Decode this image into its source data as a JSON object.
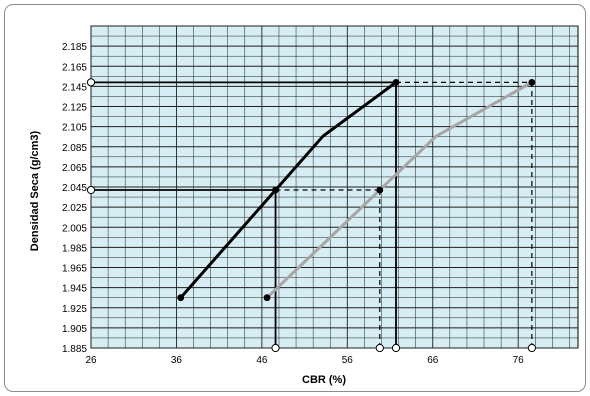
{
  "chart_data": {
    "type": "line",
    "title": "",
    "xlabel": "CBR (%)",
    "ylabel": "Densidad Seca (g/cm3)",
    "xlim": [
      26,
      83
    ],
    "ylim": [
      1.885,
      2.205
    ],
    "x_ticks": [
      "26",
      "36",
      "46",
      "56",
      "66",
      "76"
    ],
    "y_ticks": [
      "1.885",
      "1.905",
      "1.925",
      "1.945",
      "1.965",
      "1.985",
      "2.005",
      "2.025",
      "2.045",
      "2.065",
      "2.085",
      "2.105",
      "2.125",
      "2.145",
      "2.165",
      "2.185"
    ],
    "grid": true,
    "plot_background": "#d6eef3",
    "series": [
      {
        "color": "#000000",
        "points": [
          [
            36.5,
            1.935
          ],
          [
            47.6,
            2.042
          ],
          [
            61.7,
            2.149
          ]
        ]
      },
      {
        "color": "#a6a6a6",
        "points": [
          [
            46.6,
            1.935
          ],
          [
            59.8,
            2.042
          ],
          [
            77.6,
            2.149
          ]
        ]
      }
    ],
    "reference_lines": [
      {
        "style": "solid",
        "y": 2.149,
        "x_from": 26,
        "x_to": 61.7
      },
      {
        "style": "dashed",
        "y": 2.149,
        "x_from": 61.7,
        "x_to": 77.6
      },
      {
        "style": "solid",
        "y": 2.042,
        "x_from": 26,
        "x_to": 47.6
      },
      {
        "style": "dashed",
        "y": 2.042,
        "x_from": 47.6,
        "x_to": 59.8
      },
      {
        "style": "solid",
        "x": 61.7,
        "y_from": 1.885,
        "y_to": 2.149
      },
      {
        "style": "solid",
        "x": 47.6,
        "y_from": 1.885,
        "y_to": 2.042
      },
      {
        "style": "dashed",
        "x": 59.8,
        "y_from": 1.885,
        "y_to": 2.042
      },
      {
        "style": "dashed",
        "x": 77.6,
        "y_from": 1.885,
        "y_to": 2.149
      }
    ],
    "axis_markers": [
      {
        "axis": "y",
        "value": 2.149
      },
      {
        "axis": "y",
        "value": 2.042
      },
      {
        "axis": "x",
        "value": 47.6
      },
      {
        "axis": "x",
        "value": 59.8
      },
      {
        "axis": "x",
        "value": 61.7
      },
      {
        "axis": "x",
        "value": 77.6
      }
    ]
  }
}
